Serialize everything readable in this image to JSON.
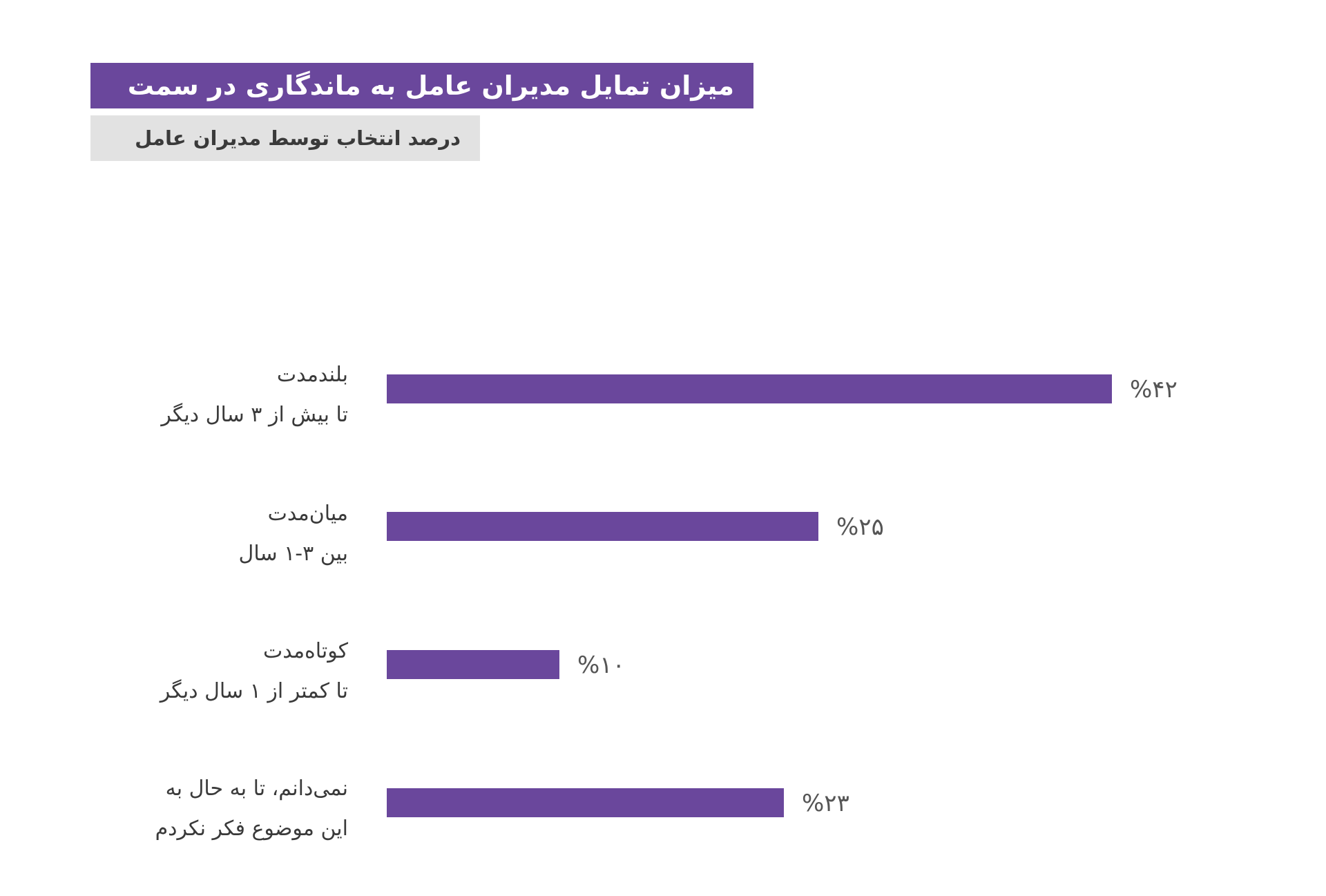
{
  "chart_data": {
    "type": "bar",
    "orientation": "horizontal",
    "title": "میزان تمایل مدیران عامل به ماندگاری در سمت",
    "subtitle": "درصد انتخاب توسط مدیران عامل",
    "categories": [
      {
        "line1": "بلندمدت",
        "line2": "تا بیش از ۳ سال دیگر"
      },
      {
        "line1": "میان‌مدت",
        "line2": "بین ۳-۱ سال"
      },
      {
        "line1": "کوتاه‌مدت",
        "line2": "تا کمتر از ۱ سال دیگر"
      },
      {
        "line1": "نمی‌دانم، تا به حال به",
        "line2": "این موضوع فکر نکردم"
      }
    ],
    "values": [
      42,
      25,
      10,
      23
    ],
    "value_labels": [
      "%۴۲",
      "%۲۵",
      "%۱۰",
      "%۲۳"
    ],
    "bar_color": "#6a479c",
    "value_label_color": "#555555",
    "category_label_color": "#3a3a3a",
    "grid": false,
    "legend": "none"
  }
}
